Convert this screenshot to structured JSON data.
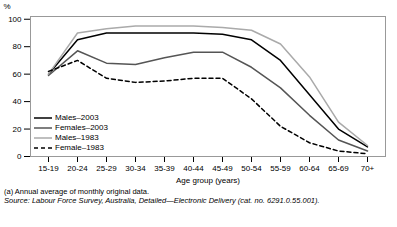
{
  "chart_data": {
    "type": "line",
    "xlabel": "Age group (years)",
    "ylabel": "%",
    "categories": [
      "15-19",
      "20-24",
      "25-29",
      "30-34",
      "35-39",
      "40-44",
      "45-49",
      "50-54",
      "55-59",
      "60-64",
      "65-69",
      "70+"
    ],
    "series": [
      {
        "name": "Males–2003",
        "color": "#000000",
        "line_style": "solid",
        "values": [
          60,
          85,
          90,
          90,
          90,
          90,
          89,
          85,
          70,
          45,
          20,
          7
        ]
      },
      {
        "name": "Females–2003",
        "color": "#555555",
        "line_style": "solid",
        "values": [
          59,
          77,
          68,
          67,
          72,
          76,
          76,
          65,
          50,
          30,
          12,
          4
        ]
      },
      {
        "name": "Males–1983",
        "color": "#aaaaaa",
        "line_style": "solid",
        "values": [
          60,
          90,
          93,
          95,
          95,
          95,
          94,
          92,
          82,
          58,
          25,
          8
        ]
      },
      {
        "name": "Female–1983",
        "color": "#000000",
        "line_style": "dashed",
        "values": [
          62,
          70,
          57,
          54,
          55,
          57,
          57,
          42,
          22,
          10,
          4,
          2
        ]
      }
    ],
    "ylim": [
      0,
      102
    ],
    "yticks": [
      0,
      20,
      40,
      60,
      80,
      100
    ],
    "grid": false,
    "legend": "lower left",
    "annotations": [
      "(a) Annual average of monthly original data.",
      "Source: Labour Force Survey, Australia, Detailed—Electronic Delivery (cat. no. 6291.0.55.001)."
    ]
  }
}
